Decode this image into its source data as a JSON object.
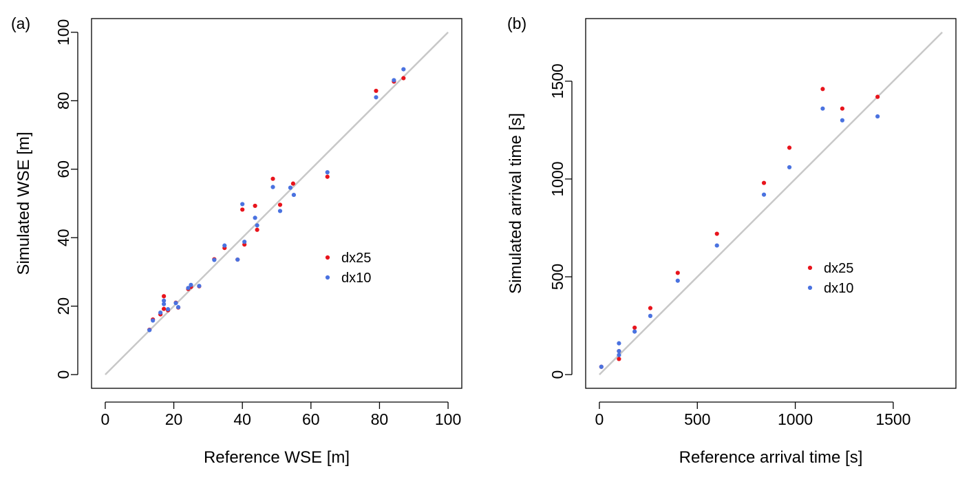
{
  "chart_data": [
    {
      "type": "scatter",
      "panel_label": "(a)",
      "xlabel": "Reference WSE [m]",
      "ylabel": "Simulated WSE [m]",
      "xlim": [
        -4,
        104
      ],
      "ylim": [
        -4,
        104
      ],
      "xticks": [
        0,
        20,
        40,
        60,
        80,
        100
      ],
      "yticks": [
        0,
        20,
        40,
        60,
        80,
        100
      ],
      "tick_labels_x": [
        "0",
        "20",
        "40",
        "60",
        "80",
        "100"
      ],
      "tick_labels_y": [
        "0",
        "20",
        "40",
        "60",
        "80",
        "100"
      ],
      "reference_line": {
        "from": [
          0,
          0
        ],
        "to": [
          100,
          100
        ],
        "color": "#c8c8c8"
      },
      "legend_position": "center-right",
      "series": [
        {
          "name": "dx25",
          "color": "#e8141c",
          "points": [
            [
              12.9,
              13.1
            ],
            [
              13.9,
              16.1
            ],
            [
              16.1,
              17.6
            ],
            [
              17.1,
              19.2
            ],
            [
              17.1,
              22.9
            ],
            [
              18.3,
              18.8
            ],
            [
              20.6,
              21.0
            ],
            [
              21.3,
              19.6
            ],
            [
              24.2,
              25.0
            ],
            [
              25.0,
              25.6
            ],
            [
              27.4,
              25.8
            ],
            [
              31.8,
              33.7
            ],
            [
              34.8,
              37.0
            ],
            [
              38.6,
              33.6
            ],
            [
              40.0,
              48.2
            ],
            [
              40.6,
              38.0
            ],
            [
              43.7,
              49.3
            ],
            [
              44.3,
              42.3
            ],
            [
              48.9,
              57.2
            ],
            [
              51.0,
              49.6
            ],
            [
              54.8,
              55.8
            ],
            [
              64.8,
              57.8
            ],
            [
              79.0,
              82.9
            ],
            [
              84.2,
              85.6
            ],
            [
              87.0,
              86.6
            ]
          ]
        },
        {
          "name": "dx10",
          "color": "#4a72e0",
          "points": [
            [
              12.9,
              13.0
            ],
            [
              13.9,
              15.8
            ],
            [
              16.1,
              18.1
            ],
            [
              17.1,
              20.6
            ],
            [
              17.1,
              21.6
            ],
            [
              18.3,
              19.1
            ],
            [
              20.6,
              20.9
            ],
            [
              21.3,
              19.7
            ],
            [
              24.2,
              25.3
            ],
            [
              25.0,
              26.2
            ],
            [
              27.4,
              25.9
            ],
            [
              31.8,
              33.5
            ],
            [
              34.8,
              37.7
            ],
            [
              38.6,
              33.6
            ],
            [
              40.0,
              49.8
            ],
            [
              40.6,
              38.8
            ],
            [
              43.7,
              45.8
            ],
            [
              44.3,
              43.6
            ],
            [
              48.9,
              54.8
            ],
            [
              51.0,
              47.8
            ],
            [
              54.0,
              54.6
            ],
            [
              55.0,
              52.5
            ],
            [
              64.8,
              59.1
            ],
            [
              79.0,
              81.0
            ],
            [
              84.2,
              86.0
            ],
            [
              87.0,
              89.2
            ]
          ]
        }
      ]
    },
    {
      "type": "scatter",
      "panel_label": "(b)",
      "xlabel": "Reference arrival time [s]",
      "ylabel": "Simulated arrival time [s]",
      "xlim": [
        -70,
        1820
      ],
      "ylim": [
        -70,
        1820
      ],
      "xticks": [
        0,
        500,
        1000,
        1500
      ],
      "yticks": [
        0,
        500,
        1000,
        1500
      ],
      "tick_labels_x": [
        "0",
        "500",
        "1000",
        "1500"
      ],
      "tick_labels_y": [
        "0",
        "500",
        "1000",
        "1500"
      ],
      "reference_line": {
        "from": [
          0,
          0
        ],
        "to": [
          1750,
          1750
        ],
        "color": "#c8c8c8"
      },
      "legend_position": "center-right",
      "series": [
        {
          "name": "dx25",
          "color": "#e8141c",
          "points": [
            [
              10,
              40
            ],
            [
              100,
              80
            ],
            [
              100,
              120
            ],
            [
              180,
              240
            ],
            [
              260,
              340
            ],
            [
              400,
              520
            ],
            [
              600,
              720
            ],
            [
              840,
              980
            ],
            [
              970,
              1160
            ],
            [
              1140,
              1460
            ],
            [
              1240,
              1360
            ],
            [
              1420,
              1420
            ]
          ]
        },
        {
          "name": "dx10",
          "color": "#4a72e0",
          "points": [
            [
              10,
              40
            ],
            [
              100,
              100
            ],
            [
              100,
              120
            ],
            [
              100,
              160
            ],
            [
              180,
              220
            ],
            [
              260,
              300
            ],
            [
              400,
              480
            ],
            [
              600,
              660
            ],
            [
              840,
              920
            ],
            [
              970,
              1060
            ],
            [
              1140,
              1360
            ],
            [
              1240,
              1300
            ],
            [
              1420,
              1320
            ]
          ]
        }
      ]
    }
  ]
}
